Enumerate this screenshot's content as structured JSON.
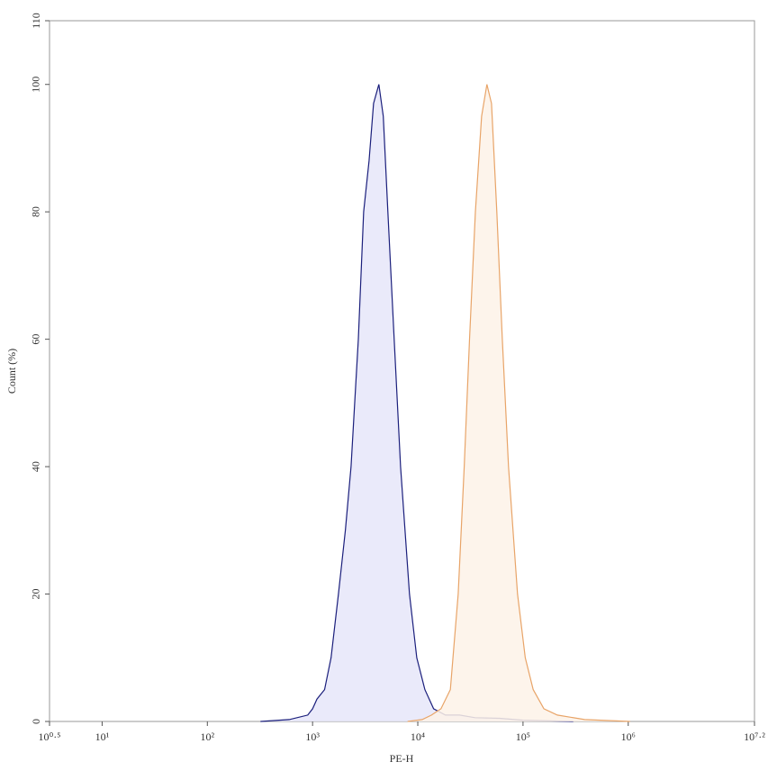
{
  "chart_data": {
    "type": "area",
    "xlabel": "PE-H",
    "ylabel": "Count (%)",
    "xscale": "log",
    "xlim": [
      3.16227766,
      15848931.92
    ],
    "xticks": [
      {
        "value": 3.16227766,
        "label": "10⁰·⁵"
      },
      {
        "value": 10,
        "label": "10¹"
      },
      {
        "value": 100,
        "label": "10²"
      },
      {
        "value": 1000,
        "label": "10³"
      },
      {
        "value": 10000,
        "label": "10⁴"
      },
      {
        "value": 100000,
        "label": "10⁵"
      },
      {
        "value": 1000000,
        "label": "10⁶"
      },
      {
        "value": 15848931.92,
        "label": "10⁷·²"
      }
    ],
    "ylim": [
      0,
      110
    ],
    "yticks": [
      0,
      20,
      40,
      60,
      80,
      100,
      110
    ],
    "series": [
      {
        "color": "#1b1f7c",
        "fill": "#e6e6f9",
        "x": [
          320,
          600,
          900,
          1000,
          1100,
          1300,
          1500,
          1760,
          2050,
          2320,
          2720,
          3060,
          3440,
          3800,
          4270,
          4700,
          5200,
          5970,
          6860,
          8330,
          9780,
          11670,
          14150,
          18300,
          25000,
          35000,
          60000,
          100000,
          300000
        ],
        "values": [
          0,
          0.3,
          1,
          2,
          3.5,
          5,
          10,
          20,
          30,
          40,
          60,
          80,
          88,
          97,
          100,
          95,
          80,
          60,
          40,
          20,
          10,
          5,
          2,
          1,
          1,
          0.6,
          0.5,
          0.2,
          0
        ]
      },
      {
        "color": "#e8a468",
        "fill": "#fdf2e7",
        "x": [
          8000,
          11000,
          13500,
          16600,
          20400,
          24200,
          27600,
          31000,
          35300,
          40400,
          45400,
          50200,
          56400,
          63600,
          72800,
          88700,
          105000,
          125000,
          158000,
          212000,
          386000,
          1040000
        ],
        "values": [
          0,
          0.3,
          1,
          2,
          5,
          20,
          40,
          60,
          80,
          95,
          100,
          97,
          80,
          60,
          40,
          20,
          10,
          5,
          2,
          1,
          0.3,
          0
        ]
      }
    ]
  }
}
